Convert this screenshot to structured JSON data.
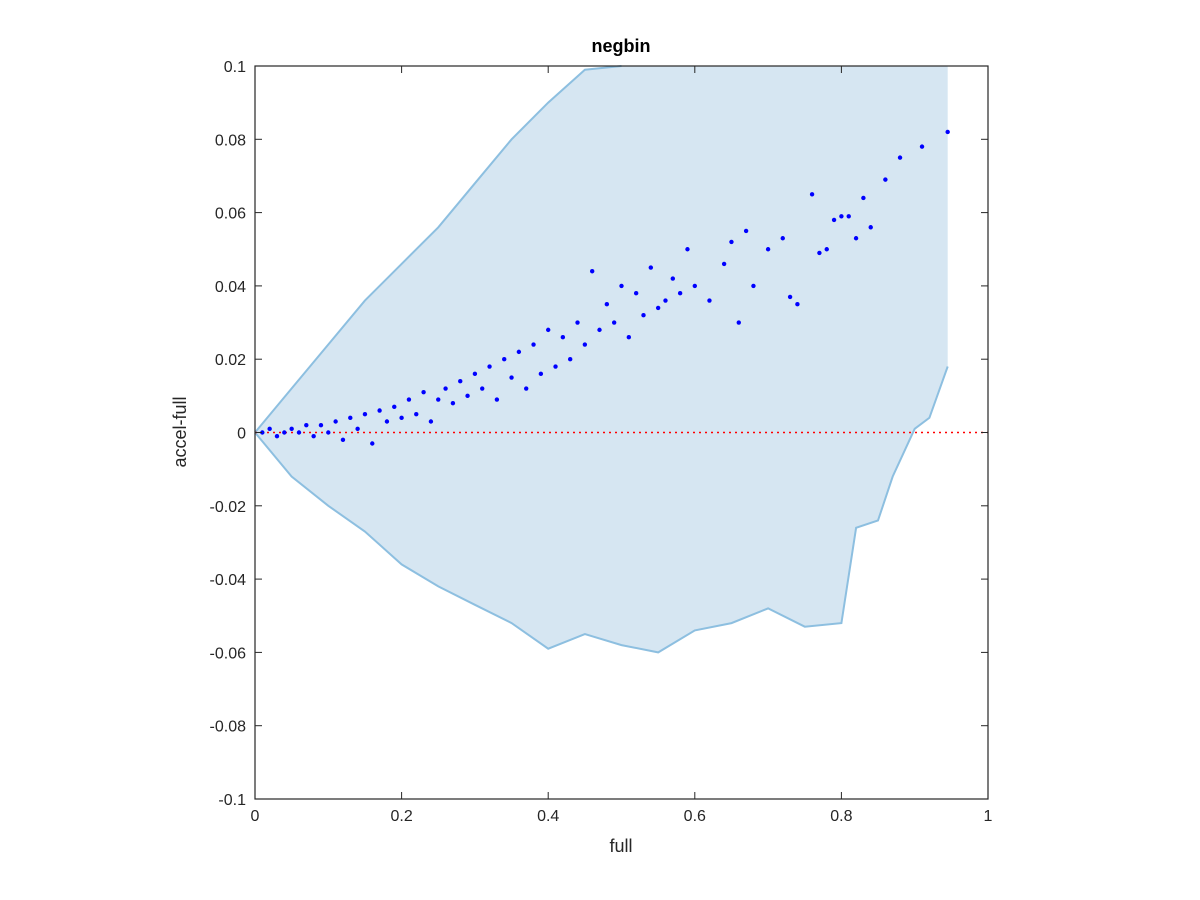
{
  "chart_data": {
    "type": "scatter",
    "title": "negbin",
    "xlabel": "full",
    "ylabel": "accel-full",
    "xlim": [
      0,
      1
    ],
    "ylim": [
      -0.1,
      0.1
    ],
    "xticks": [
      0,
      0.2,
      0.4,
      0.6,
      0.8,
      1
    ],
    "xtick_labels": [
      "0",
      "0.2",
      "0.4",
      "0.6",
      "0.8",
      "1"
    ],
    "yticks": [
      -0.1,
      -0.08,
      -0.06,
      -0.04,
      -0.02,
      0,
      0.02,
      0.04,
      0.06,
      0.08,
      0.1
    ],
    "ytick_labels": [
      "-0.1",
      "-0.08",
      "-0.06",
      "-0.04",
      "-0.02",
      "0",
      "0.02",
      "0.04",
      "0.06",
      "0.08",
      "0.1"
    ],
    "grid": false,
    "reference_line": {
      "y": 0,
      "style": "dotted",
      "color": "#ff0000"
    },
    "band": {
      "fill_color": "#d6e6f2",
      "line_color": "#8dbfe0",
      "upper": [
        [
          0,
          0
        ],
        [
          0.05,
          0.012
        ],
        [
          0.1,
          0.024
        ],
        [
          0.15,
          0.036
        ],
        [
          0.2,
          0.046
        ],
        [
          0.25,
          0.056
        ],
        [
          0.3,
          0.068
        ],
        [
          0.35,
          0.08
        ],
        [
          0.4,
          0.09
        ],
        [
          0.45,
          0.099
        ],
        [
          0.5,
          0.1
        ],
        [
          0.945,
          0.1
        ]
      ],
      "lower": [
        [
          0,
          0
        ],
        [
          0.05,
          -0.012
        ],
        [
          0.1,
          -0.02
        ],
        [
          0.15,
          -0.027
        ],
        [
          0.2,
          -0.036
        ],
        [
          0.25,
          -0.042
        ],
        [
          0.3,
          -0.047
        ],
        [
          0.35,
          -0.052
        ],
        [
          0.4,
          -0.059
        ],
        [
          0.45,
          -0.055
        ],
        [
          0.5,
          -0.058
        ],
        [
          0.55,
          -0.06
        ],
        [
          0.6,
          -0.054
        ],
        [
          0.65,
          -0.052
        ],
        [
          0.7,
          -0.048
        ],
        [
          0.75,
          -0.053
        ],
        [
          0.8,
          -0.052
        ],
        [
          0.82,
          -0.026
        ],
        [
          0.85,
          -0.024
        ],
        [
          0.87,
          -0.012
        ],
        [
          0.9,
          0.001
        ],
        [
          0.92,
          0.004
        ],
        [
          0.945,
          0.018
        ]
      ]
    },
    "series": [
      {
        "color": "#0000ff",
        "points": [
          [
            0.01,
            0.0
          ],
          [
            0.02,
            0.001
          ],
          [
            0.03,
            -0.001
          ],
          [
            0.04,
            0.0
          ],
          [
            0.05,
            0.001
          ],
          [
            0.06,
            0.0
          ],
          [
            0.07,
            0.002
          ],
          [
            0.08,
            -0.001
          ],
          [
            0.09,
            0.002
          ],
          [
            0.1,
            0.0
          ],
          [
            0.11,
            0.003
          ],
          [
            0.12,
            -0.002
          ],
          [
            0.13,
            0.004
          ],
          [
            0.14,
            0.001
          ],
          [
            0.15,
            0.005
          ],
          [
            0.16,
            -0.003
          ],
          [
            0.17,
            0.006
          ],
          [
            0.18,
            0.003
          ],
          [
            0.19,
            0.007
          ],
          [
            0.2,
            0.004
          ],
          [
            0.21,
            0.009
          ],
          [
            0.22,
            0.005
          ],
          [
            0.23,
            0.011
          ],
          [
            0.24,
            0.003
          ],
          [
            0.25,
            0.009
          ],
          [
            0.26,
            0.012
          ],
          [
            0.27,
            0.008
          ],
          [
            0.28,
            0.014
          ],
          [
            0.29,
            0.01
          ],
          [
            0.3,
            0.016
          ],
          [
            0.31,
            0.012
          ],
          [
            0.32,
            0.018
          ],
          [
            0.33,
            0.009
          ],
          [
            0.34,
            0.02
          ],
          [
            0.35,
            0.015
          ],
          [
            0.36,
            0.022
          ],
          [
            0.37,
            0.012
          ],
          [
            0.38,
            0.024
          ],
          [
            0.39,
            0.016
          ],
          [
            0.4,
            0.028
          ],
          [
            0.41,
            0.018
          ],
          [
            0.42,
            0.026
          ],
          [
            0.43,
            0.02
          ],
          [
            0.44,
            0.03
          ],
          [
            0.45,
            0.024
          ],
          [
            0.46,
            0.044
          ],
          [
            0.47,
            0.028
          ],
          [
            0.48,
            0.035
          ],
          [
            0.49,
            0.03
          ],
          [
            0.5,
            0.04
          ],
          [
            0.51,
            0.026
          ],
          [
            0.52,
            0.038
          ],
          [
            0.53,
            0.032
          ],
          [
            0.54,
            0.045
          ],
          [
            0.55,
            0.034
          ],
          [
            0.56,
            0.036
          ],
          [
            0.57,
            0.042
          ],
          [
            0.58,
            0.038
          ],
          [
            0.59,
            0.05
          ],
          [
            0.6,
            0.04
          ],
          [
            0.62,
            0.036
          ],
          [
            0.64,
            0.046
          ],
          [
            0.65,
            0.052
          ],
          [
            0.66,
            0.03
          ],
          [
            0.67,
            0.055
          ],
          [
            0.68,
            0.04
          ],
          [
            0.7,
            0.05
          ],
          [
            0.72,
            0.053
          ],
          [
            0.73,
            0.037
          ],
          [
            0.74,
            0.035
          ],
          [
            0.76,
            0.065
          ],
          [
            0.77,
            0.049
          ],
          [
            0.78,
            0.05
          ],
          [
            0.79,
            0.058
          ],
          [
            0.8,
            0.059
          ],
          [
            0.81,
            0.059
          ],
          [
            0.82,
            0.053
          ],
          [
            0.83,
            0.064
          ],
          [
            0.84,
            0.056
          ],
          [
            0.86,
            0.069
          ],
          [
            0.88,
            0.075
          ],
          [
            0.91,
            0.078
          ],
          [
            0.945,
            0.082
          ]
        ]
      }
    ]
  }
}
